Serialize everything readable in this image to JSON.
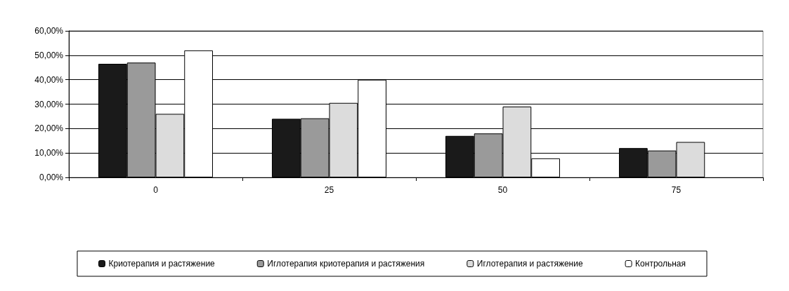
{
  "chart_data": {
    "type": "bar",
    "categories": [
      "0",
      "25",
      "50",
      "75"
    ],
    "series": [
      {
        "name": "Криотерапия и растяжение",
        "color": "#1a1a1a",
        "values": [
          46.5,
          24,
          17,
          12
        ]
      },
      {
        "name": "Иглотерапия криотерапия и растяжения",
        "color": "#9a9a9a",
        "values": [
          47,
          24.2,
          18,
          11
        ]
      },
      {
        "name": "Иглотерапия и растяжение",
        "color": "#dcdcdc",
        "values": [
          26,
          30.5,
          29,
          14.5
        ]
      },
      {
        "name": "Контрольная",
        "color": "#ffffff",
        "values": [
          52,
          40,
          7.8,
          null
        ]
      }
    ],
    "ylim": [
      0,
      60
    ],
    "yticks": [
      {
        "value": 0,
        "label": "0,00%"
      },
      {
        "value": 10,
        "label": "10,00%"
      },
      {
        "value": 20,
        "label": "20,00%"
      },
      {
        "value": 30,
        "label": "30,00%"
      },
      {
        "value": 40,
        "label": "40,00%"
      },
      {
        "value": 50,
        "label": "50,00%"
      },
      {
        "value": 60,
        "label": "60,00%"
      }
    ],
    "grid": "y",
    "legend": "bottom"
  }
}
